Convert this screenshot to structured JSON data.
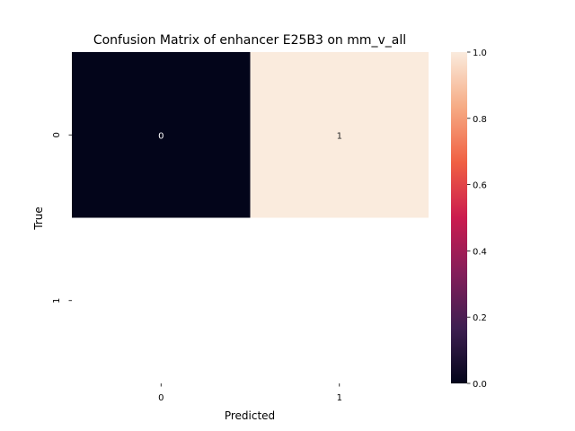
{
  "chart_data": {
    "type": "heatmap",
    "title": "Confusion Matrix of enhancer E25B3 on mm_v_all",
    "xlabel": "Predicted",
    "ylabel": "True",
    "x_categories": [
      "0",
      "1"
    ],
    "y_categories": [
      "0",
      "1"
    ],
    "cells": [
      {
        "row": 0,
        "col": 0,
        "value": 0,
        "label": "0",
        "label_color": "#ffffff"
      },
      {
        "row": 0,
        "col": 1,
        "value": 1,
        "label": "1",
        "label_color": "#262626"
      },
      {
        "row": 1,
        "col": 0,
        "value": null,
        "label": ""
      },
      {
        "row": 1,
        "col": 1,
        "value": null,
        "label": ""
      }
    ],
    "colorbar": {
      "vmin": 0.0,
      "vmax": 1.0,
      "ticks": [
        {
          "value": 0.0,
          "label": "0.0"
        },
        {
          "value": 0.2,
          "label": "0.2"
        },
        {
          "value": 0.4,
          "label": "0.4"
        },
        {
          "value": 0.6,
          "label": "0.6"
        },
        {
          "value": 0.8,
          "label": "0.8"
        },
        {
          "value": 1.0,
          "label": "1.0"
        }
      ],
      "colormap": "rocket",
      "colors": [
        "#03051a",
        "#3e1f51",
        "#841e5a",
        "#cb1b4f",
        "#f06043",
        "#f6ab84",
        "#faebdd"
      ]
    },
    "grid": false,
    "legend": "colorbar-right"
  }
}
